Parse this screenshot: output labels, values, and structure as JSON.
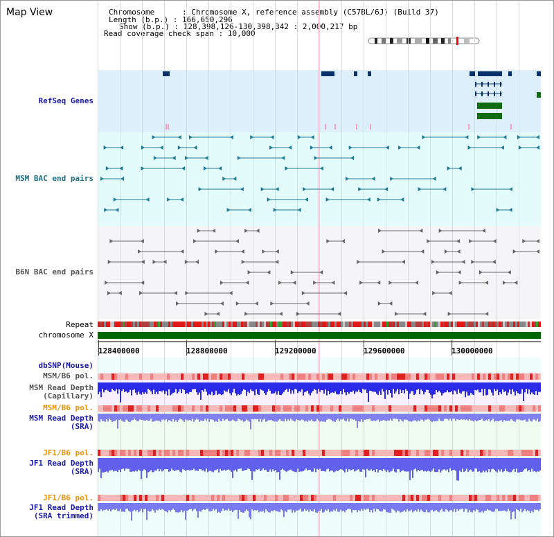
{
  "title": "Map View",
  "info": {
    "chromosome_key": "Chromosome",
    "chromosome_val": "Chromosome X, reference assembly (C57BL/6J) (Build 37)",
    "length_key": "Length (b.p.)",
    "length_val": "166,650,296",
    "show_key": "Show (b.p.)",
    "show_val": "128,398,126-130,398,342 : 2,000,217 bp",
    "span_key": "Read coverage check span",
    "span_val": "10,000"
  },
  "tracks": {
    "refseq": "RefSeq Genes",
    "msm_bac": "MSM BAC end pairs",
    "b6n_bac": "B6N BAC end pairs",
    "repeat": "Repeat",
    "chromosome": "chromosome X",
    "dbsnp": "dbSNP(Mouse)",
    "msm_b6_pol_1": "MSM/B6 pol.",
    "msm_depth_cap": "MSM Read Depth\n(Capillary)",
    "msm_b6_pol_2": "MSM/B6 pol.",
    "msm_depth_sra": "MSM Read Depth\n(SRA)",
    "jf1_b6_pol_1": "JF1/B6 pol.",
    "jf1_depth_sra": "JF1 Read Depth\n(SRA)",
    "jf1_b6_pol_2": "JF1/B6 pol.",
    "jf1_depth_trim": "JF1 Read Depth\n(SRA trimmed)"
  },
  "axis_ticks": [
    "128400000",
    "128800000",
    "129200000",
    "129600000",
    "130000000"
  ],
  "colors": {
    "refseq_bg": "#dceffb",
    "msm_bg": "#e3fbfb",
    "b6n_bg": "#f5f5f8",
    "label_blue": "#1a1aa8",
    "label_teal": "#1e6e86",
    "label_gray": "#555555",
    "label_orange": "#e8920a",
    "chromosome_green": "#006600",
    "gene_dark": "#08306b",
    "gene_green": "#0c6b0c"
  }
}
